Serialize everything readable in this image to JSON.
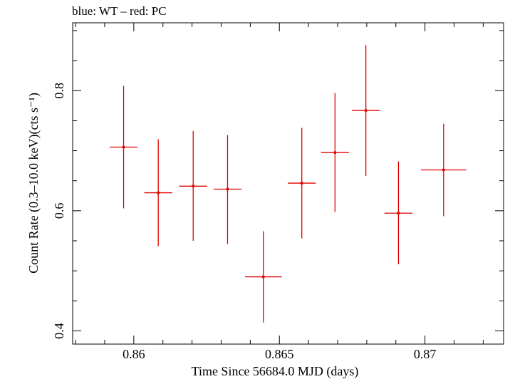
{
  "chart_data": {
    "type": "scatter",
    "title": "blue: WT – red: PC",
    "xlabel": "Time Since 56684.0 MJD (days)",
    "ylabel": "Count Rate (0.3–10.0 keV)(cts s⁻¹)",
    "xlim": [
      0.8579,
      0.8727
    ],
    "ylim": [
      0.378,
      0.913
    ],
    "x_ticks": [
      {
        "value": 0.86,
        "label": "0.86"
      },
      {
        "value": 0.865,
        "label": "0.865"
      },
      {
        "value": 0.87,
        "label": "0.87"
      }
    ],
    "y_ticks": [
      {
        "value": 0.4,
        "label": "0.4"
      },
      {
        "value": 0.6,
        "label": "0.6"
      },
      {
        "value": 0.8,
        "label": "0.8"
      }
    ],
    "x_minor_step": 0.001,
    "y_minor_step": 0.05,
    "grid": false,
    "series": [
      {
        "color": "#e00000",
        "points": [
          {
            "x": 0.85965,
            "y": 0.706,
            "xerr": 0.00048,
            "ylo": 0.604,
            "yhi": 0.808
          },
          {
            "x": 0.86084,
            "y": 0.63,
            "xerr": 0.00048,
            "ylo": 0.541,
            "yhi": 0.719
          },
          {
            "x": 0.86204,
            "y": 0.641,
            "xerr": 0.00048,
            "ylo": 0.55,
            "yhi": 0.733
          },
          {
            "x": 0.86322,
            "y": 0.636,
            "xerr": 0.00048,
            "ylo": 0.545,
            "yhi": 0.726
          },
          {
            "x": 0.86445,
            "y": 0.49,
            "xerr": 0.00063,
            "ylo": 0.414,
            "yhi": 0.566
          },
          {
            "x": 0.86577,
            "y": 0.646,
            "xerr": 0.00048,
            "ylo": 0.554,
            "yhi": 0.738
          },
          {
            "x": 0.86691,
            "y": 0.697,
            "xerr": 0.00048,
            "ylo": 0.598,
            "yhi": 0.796
          },
          {
            "x": 0.86797,
            "y": 0.767,
            "xerr": 0.00048,
            "ylo": 0.658,
            "yhi": 0.876
          },
          {
            "x": 0.86909,
            "y": 0.596,
            "xerr": 0.00048,
            "ylo": 0.511,
            "yhi": 0.682
          },
          {
            "x": 0.87064,
            "y": 0.668,
            "xerr": 0.00078,
            "ylo": 0.591,
            "yhi": 0.745
          }
        ]
      }
    ]
  }
}
